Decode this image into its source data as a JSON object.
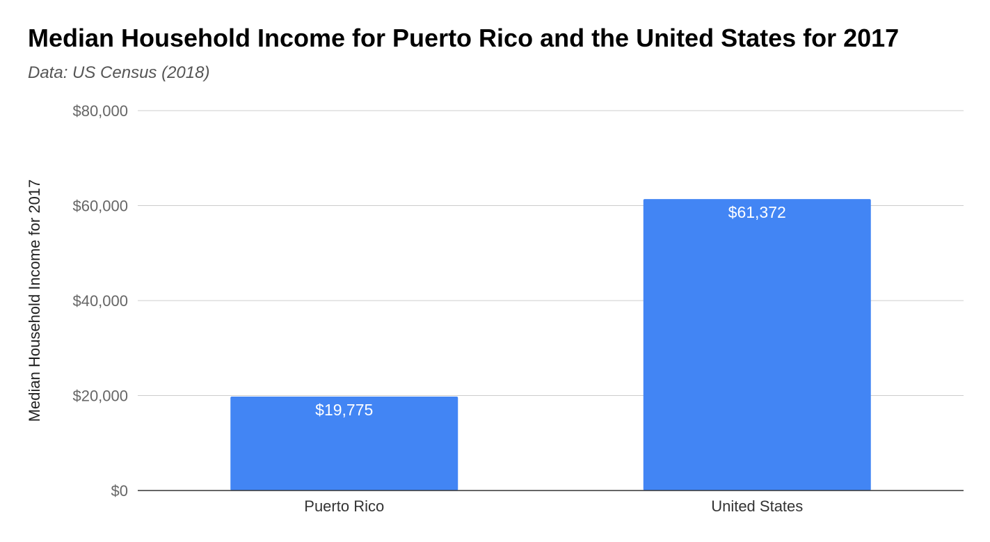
{
  "chart_data": {
    "type": "bar",
    "title": "Median Household Income for Puerto Rico and the United States for 2017",
    "subtitle": "Data: US Census (2018)",
    "xlabel": "",
    "ylabel": "Median Household Income for 2017",
    "categories": [
      "Puerto Rico",
      "United States"
    ],
    "values": [
      19775,
      61372
    ],
    "data_labels": [
      "$19,775",
      "$61,372"
    ],
    "ylim": [
      0,
      80000
    ],
    "yticks": [
      0,
      20000,
      40000,
      60000,
      80000
    ],
    "ytick_labels": [
      "$0",
      "$20,000",
      "$40,000",
      "$60,000",
      "$80,000"
    ],
    "grid": true,
    "legend": "none",
    "colors": {
      "bar": "#4285f4",
      "gridline": "#cccccc",
      "axis": "#333333",
      "tick_text": "#666666",
      "category_text": "#333333",
      "data_label_text": "#ffffff"
    }
  }
}
